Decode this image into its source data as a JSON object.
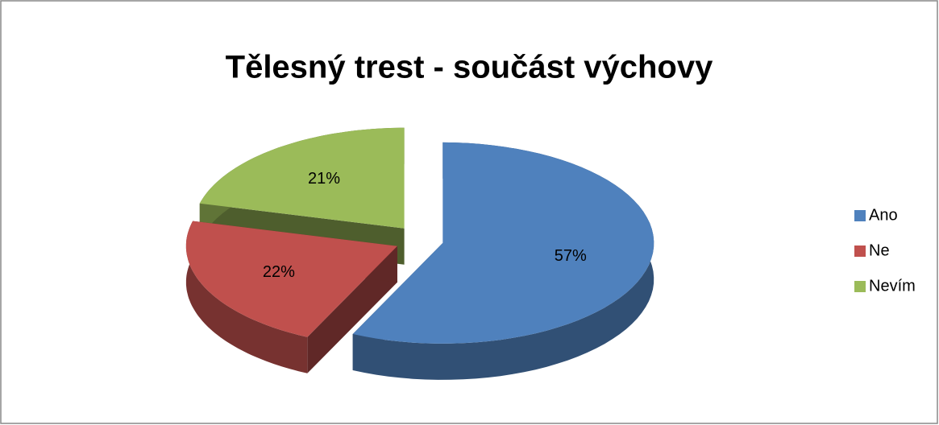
{
  "chart_data": {
    "type": "pie",
    "title": "Tělesný trest - součást výchovy",
    "categories": [
      "Ano",
      "Ne",
      "Nevím"
    ],
    "values": [
      57,
      22,
      21
    ],
    "value_labels": [
      "57%",
      "22%",
      "21%"
    ],
    "colors": [
      "#4f81bd",
      "#c0504d",
      "#9bbb59"
    ],
    "legend": "right"
  }
}
